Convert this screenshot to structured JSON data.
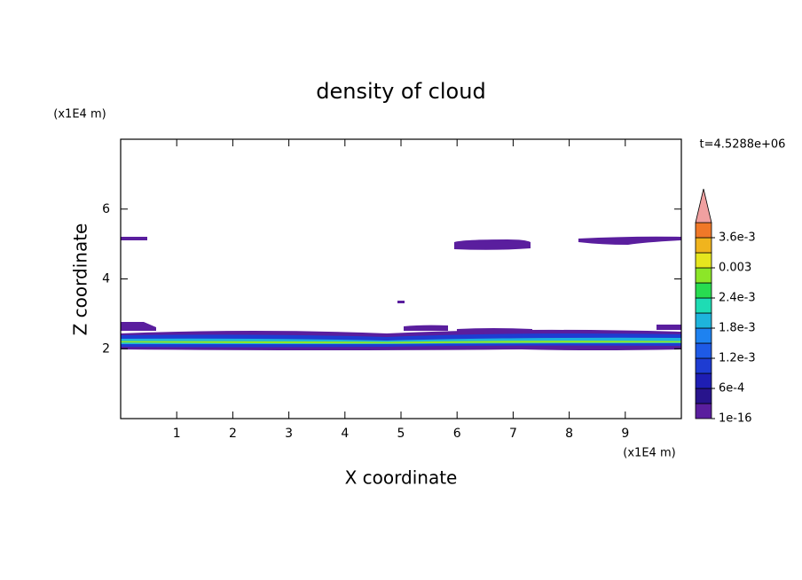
{
  "chart_data": {
    "type": "contour",
    "title": "density of cloud",
    "xlabel": "X coordinate",
    "ylabel": "Z coordinate",
    "x_unit": "(x1E4 m)",
    "y_unit": "(x1E4 m)",
    "time_label": "t=4.5288e+06",
    "xlim": [
      0,
      10
    ],
    "ylim": [
      0,
      8
    ],
    "xticks": [
      1,
      2,
      3,
      4,
      5,
      6,
      7,
      8,
      9
    ],
    "yticks": [
      2,
      4,
      6
    ],
    "levels": [
      1e-16,
      0.0003,
      0.0006,
      0.0009,
      0.0012,
      0.0015,
      0.0018,
      0.0021,
      0.0024,
      0.0027,
      0.003,
      0.0033,
      0.0036,
      0.0039
    ],
    "colors": [
      "#5a1e9e",
      "#28148c",
      "#1e1eb4",
      "#1e3cd2",
      "#1e5ae6",
      "#1e82f0",
      "#1eb4dc",
      "#1edcb4",
      "#28dc50",
      "#8ce628",
      "#e6e61e",
      "#f0b41e",
      "#f07828"
    ],
    "extend_color": "#f0a0a0",
    "colorbar_ticks": [
      {
        "value": 1e-16,
        "label": "1e-16"
      },
      {
        "value": 0.0006,
        "label": "6e-4"
      },
      {
        "value": 0.0012,
        "label": "1.2e-3"
      },
      {
        "value": 0.0018,
        "label": "1.8e-3"
      },
      {
        "value": 0.0024,
        "label": "2.4e-3"
      },
      0.003,
      {
        "value": 0.0036,
        "label": "3.6e-3"
      }
    ]
  }
}
